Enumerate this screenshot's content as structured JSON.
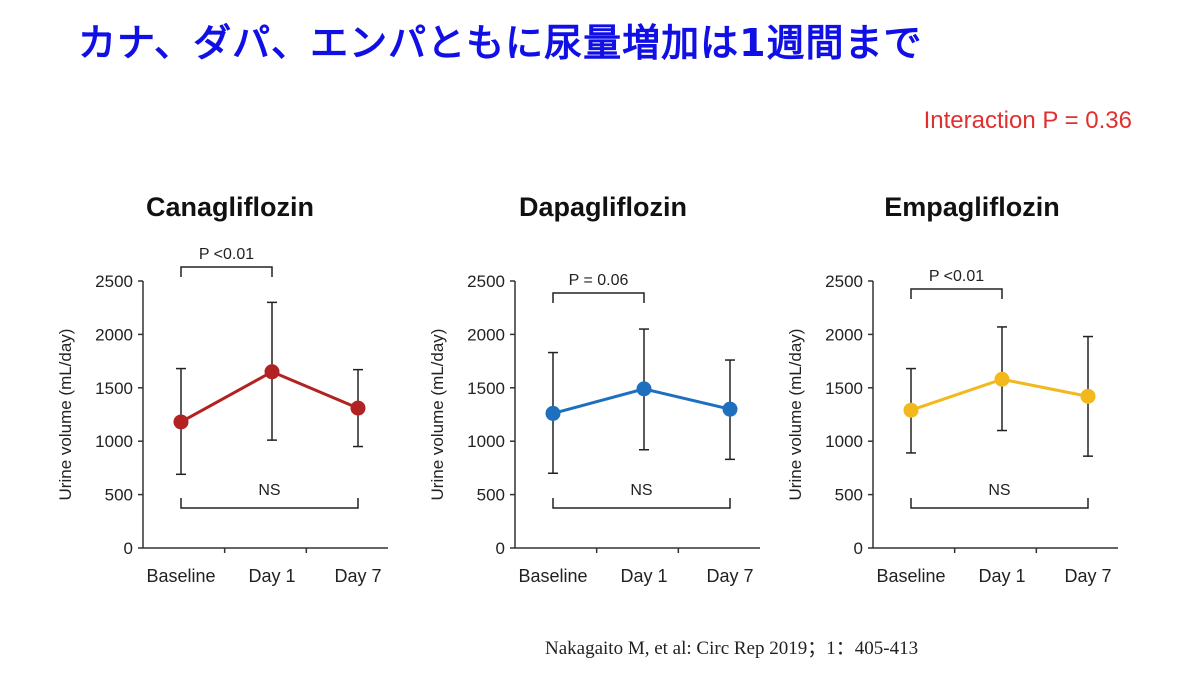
{
  "slide": {
    "title": "カナ、ダパ、エンパともに尿量増加は1週間まで",
    "interaction_label": "Interaction P = 0.36",
    "citation": "Nakagaito M, et al: Circ Rep 2019；1：405-413"
  },
  "colors": {
    "title": "#1010e6",
    "interaction": "#e03030"
  },
  "chart_data": [
    {
      "type": "line",
      "title": "Canagliflozin",
      "ylabel": "Urine volume (mL/day)",
      "xlabel": "",
      "categories": [
        "Baseline",
        "Day 1",
        "Day 7"
      ],
      "yticks": [
        0,
        500,
        1000,
        1500,
        2000,
        2500
      ],
      "ylim": [
        0,
        2500
      ],
      "grid": false,
      "color": "#b22222",
      "values": [
        1180,
        1650,
        1310
      ],
      "error_low": [
        690,
        1010,
        950
      ],
      "error_high": [
        1680,
        2300,
        1670
      ],
      "sig_top": {
        "label": "P <0.01",
        "from": 0,
        "to": 1
      },
      "sig_bottom": {
        "label": "NS",
        "from": 0,
        "to": 2
      }
    },
    {
      "type": "line",
      "title": "Dapagliflozin",
      "ylabel": "Urine volume (mL/day)",
      "xlabel": "",
      "categories": [
        "Baseline",
        "Day 1",
        "Day 7"
      ],
      "yticks": [
        0,
        500,
        1000,
        1500,
        2000,
        2500
      ],
      "ylim": [
        0,
        2500
      ],
      "grid": false,
      "color": "#1f6fbf",
      "values": [
        1260,
        1490,
        1300
      ],
      "error_low": [
        700,
        920,
        830
      ],
      "error_high": [
        1830,
        2050,
        1760
      ],
      "sig_top": {
        "label": "P = 0.06",
        "from": 0,
        "to": 1
      },
      "sig_bottom": {
        "label": "NS",
        "from": 0,
        "to": 2
      }
    },
    {
      "type": "line",
      "title": "Empagliflozin",
      "ylabel": "Urine volume (mL/day)",
      "xlabel": "",
      "categories": [
        "Baseline",
        "Day 1",
        "Day 7"
      ],
      "yticks": [
        0,
        500,
        1000,
        1500,
        2000,
        2500
      ],
      "ylim": [
        0,
        2500
      ],
      "grid": false,
      "color": "#f2b81c",
      "values": [
        1290,
        1580,
        1420
      ],
      "error_low": [
        890,
        1100,
        860
      ],
      "error_high": [
        1680,
        2070,
        1980
      ],
      "sig_top": {
        "label": "P <0.01",
        "from": 0,
        "to": 1
      },
      "sig_bottom": {
        "label": "NS",
        "from": 0,
        "to": 2
      }
    }
  ]
}
